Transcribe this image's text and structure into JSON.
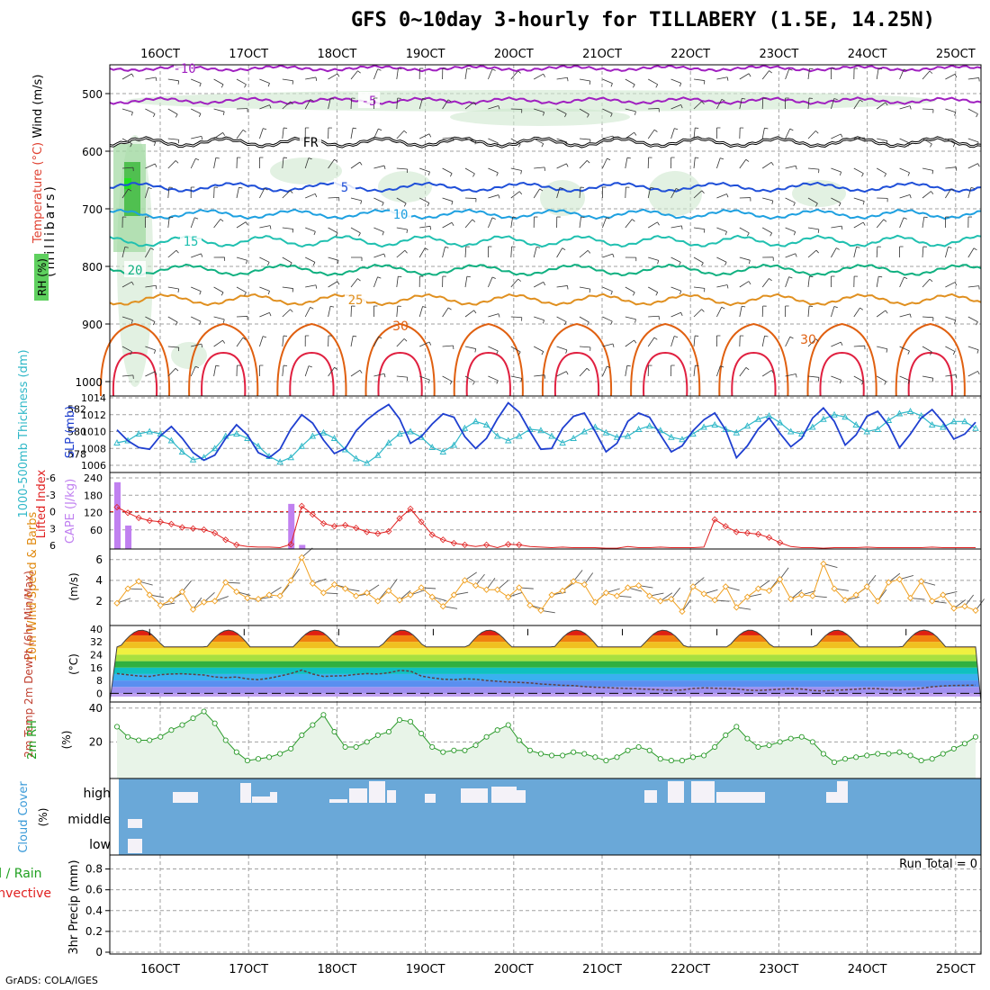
{
  "title": "GFS 0~10day 3-hourly for TILLABERY (1.5E, 14.25N)",
  "credit": "GrADS: COLA/IGES",
  "dates": [
    "16OCT",
    "17OCT",
    "18OCT",
    "19OCT",
    "20OCT",
    "21OCT",
    "22OCT",
    "23OCT",
    "24OCT",
    "25OCT"
  ],
  "panels": {
    "upper": {
      "ylabel": "(millibars)",
      "ylabel_parts": [
        "Wind (m/s)",
        "Temperature (°C)",
        "RH (%)"
      ],
      "levels": [
        "500",
        "600",
        "700",
        "800",
        "900",
        "1000"
      ],
      "contours": [
        "-10",
        "-5",
        "FR",
        "5",
        "10",
        "15",
        "20",
        "25",
        "30",
        "30"
      ]
    },
    "thickness": {
      "left_label": "1000-500mb Thickness (dm)",
      "right_label": "SLP (mb)",
      "left_ticks": [
        "582",
        "580",
        "578"
      ],
      "right_ticks": [
        "1014",
        "1012",
        "1010",
        "1008",
        "1006"
      ]
    },
    "cape": {
      "left_label": "Lifted Index",
      "right_label": "CAPE (J/kg)",
      "li_ticks": [
        "-6",
        "-3",
        "0",
        "3",
        "6"
      ],
      "cape_ticks": [
        "240",
        "180",
        "120",
        "60"
      ]
    },
    "wind10": {
      "label": "10m Wind Speed & Barbs",
      "unit": "(m/s)",
      "ticks": [
        "6",
        "4",
        "2"
      ]
    },
    "temp2m": {
      "label": "2m Temp 2m DewPt (6hr Min/Max)",
      "unit": "(°C)",
      "ticks": [
        "40",
        "32",
        "24",
        "16",
        "8",
        "0"
      ]
    },
    "rh2m": {
      "label": "2m RH",
      "unit": "(%)",
      "ticks": [
        "40",
        "20"
      ]
    },
    "cloud": {
      "label": "Cloud Cover",
      "unit": "(%)",
      "levels": [
        "high",
        "middle",
        "low"
      ]
    },
    "precip": {
      "label": "3hr Precip (mm)",
      "sub_labels": [
        "Total / Rain",
        "Convective"
      ],
      "ticks": [
        "0.8",
        "0.6",
        "0.4",
        "0.2",
        "0"
      ],
      "run_total": "Run Total = 0"
    }
  },
  "colors": {
    "contour_purple": "#a020c0",
    "contour_blue": "#1f4fd8",
    "contour_lightblue": "#1ea0e0",
    "contour_teal": "#20c0b0",
    "contour_green": "#10b080",
    "contour_orange": "#e09020",
    "contour_darkorange": "#e06010",
    "contour_red": "#e02040",
    "rh_fill": "#cfe8cf",
    "cloud_blue": "#6aa8d8",
    "cape_bar": "#c080f0"
  },
  "chart_data": [
    {
      "type": "line",
      "title": "1000-500mb Thickness (dm) / SLP (mb)",
      "x": "3-hourly steps from 16OCT 00Z (t=0..79)",
      "series": [
        {
          "name": "SLP (mb)",
          "axis": "right",
          "ylim": [
            1006,
            1014
          ],
          "values": [
            1010.2,
            1008.9,
            1008.1,
            1007.9,
            1009.5,
            1010.6,
            1009.2,
            1007.5,
            1006.6,
            1007.2,
            1009.2,
            1010.8,
            1009.6,
            1007.5,
            1006.9,
            1007.9,
            1010.3,
            1012.0,
            1011.0,
            1009.0,
            1007.4,
            1008.0,
            1010.1,
            1011.4,
            1012.4,
            1013.2,
            1011.5,
            1008.6,
            1009.4,
            1010.9,
            1012.1,
            1011.7,
            1009.4,
            1008.0,
            1009.2,
            1011.5,
            1013.4,
            1012.3,
            1010.0,
            1007.9,
            1008.0,
            1010.4,
            1011.8,
            1012.2,
            1010.0,
            1007.6,
            1008.6,
            1011.2,
            1012.2,
            1011.7,
            1009.6,
            1007.6,
            1008.3,
            1010.1,
            1011.4,
            1012.2,
            1010.2,
            1006.9,
            1008.3,
            1010.3,
            1011.6,
            1009.8,
            1008.2,
            1009.2,
            1011.6,
            1012.8,
            1011.2,
            1008.4,
            1009.6,
            1011.8,
            1012.4,
            1010.7,
            1008.1,
            1009.7,
            1011.6,
            1012.6,
            1011.1,
            1009.1,
            1009.7,
            1011.1
          ]
        },
        {
          "name": "1000-500mb Thickness (dm)",
          "axis": "left",
          "ylim": [
            577,
            583
          ],
          "values": [
            579.0,
            579.2,
            579.8,
            580.0,
            579.8,
            579.2,
            578.2,
            577.5,
            577.7,
            578.5,
            579.6,
            579.8,
            579.4,
            578.7,
            577.8,
            577.3,
            577.7,
            578.7,
            579.6,
            579.9,
            579.4,
            578.4,
            577.6,
            577.2,
            577.9,
            579.0,
            579.8,
            580.0,
            579.5,
            578.6,
            578.2,
            578.8,
            580.3,
            580.9,
            580.6,
            579.6,
            579.2,
            579.6,
            580.2,
            580.1,
            579.6,
            579.0,
            579.4,
            580.0,
            580.4,
            579.9,
            579.5,
            579.6,
            580.2,
            580.5,
            580.1,
            579.5,
            579.3,
            579.8,
            580.4,
            580.6,
            580.2,
            579.9,
            580.5,
            581.1,
            581.4,
            580.8,
            580.0,
            579.8,
            580.4,
            581.1,
            581.5,
            581.3,
            580.6,
            580.0,
            580.2,
            581.0,
            581.6,
            581.8,
            581.4,
            580.6,
            580.4,
            580.9,
            580.9,
            580.3
          ]
        }
      ]
    },
    {
      "type": "bar",
      "title": "Lifted Index / CAPE (J/kg)",
      "cape_bars": [
        {
          "t": 0,
          "value": 225
        },
        {
          "t": 1,
          "value": 75
        },
        {
          "t": 16,
          "value": 150
        },
        {
          "t": 17,
          "value": 8
        }
      ],
      "lifted_index": {
        "ylim": [
          6,
          -6
        ],
        "values": [
          -0.8,
          0.2,
          1.1,
          1.6,
          1.8,
          2.2,
          2.8,
          3.0,
          3.2,
          3.8,
          5.0,
          5.9,
          6.2,
          6.3,
          6.3,
          6.4,
          5.8,
          -1.0,
          0.5,
          2.1,
          2.6,
          2.4,
          2.9,
          3.6,
          3.9,
          3.5,
          1.2,
          -0.5,
          1.8,
          4.1,
          5.0,
          5.6,
          5.9,
          6.2,
          5.9,
          6.4,
          5.8,
          5.9,
          6.2,
          6.3,
          6.4,
          6.3,
          6.4,
          6.4,
          6.4,
          6.5,
          6.5,
          6.2,
          6.4,
          6.4,
          6.3,
          6.4,
          6.4,
          6.4,
          6.3,
          1.4,
          2.6,
          3.6,
          3.8,
          4.0,
          4.6,
          5.5,
          6.2,
          6.4,
          6.4,
          6.5,
          6.4,
          6.4,
          6.4,
          6.3,
          6.4,
          6.4,
          6.4,
          6.4,
          6.4,
          6.3,
          6.4,
          6.4,
          6.4,
          6.4
        ]
      }
    },
    {
      "type": "line",
      "title": "10m Wind Speed & Barbs (m/s)",
      "ylim": [
        0,
        6.5
      ],
      "values": [
        1.8,
        3.2,
        3.9,
        2.6,
        1.6,
        2.1,
        2.9,
        1.2,
        1.9,
        2.0,
        3.8,
        2.9,
        2.3,
        2.2,
        2.6,
        2.5,
        4.0,
        6.2,
        3.7,
        2.8,
        3.6,
        3.2,
        2.5,
        2.8,
        2.0,
        3.0,
        2.1,
        2.6,
        3.3,
        2.4,
        1.5,
        2.6,
        4.0,
        3.5,
        3.1,
        3.1,
        2.4,
        3.3,
        1.6,
        1.1,
        2.6,
        3.0,
        3.9,
        3.6,
        1.9,
        2.8,
        2.5,
        3.3,
        3.5,
        2.5,
        2.0,
        2.2,
        1.0,
        3.4,
        2.7,
        2.1,
        3.4,
        1.4,
        2.4,
        3.2,
        3.0,
        4.1,
        2.2,
        2.6,
        2.5,
        5.6,
        3.2,
        2.1,
        2.6,
        3.4,
        2.0,
        3.8,
        4.1,
        2.3,
        3.9,
        2.0,
        2.6,
        1.3,
        1.5,
        1.1
      ]
    },
    {
      "type": "area",
      "title": "2m Temp / 2m DewPt (°C)",
      "ylim": [
        -2,
        41
      ],
      "temp_cycle": {
        "min": 28.5,
        "max": 39.5,
        "period_days": 1
      },
      "dewpt": [
        12.3,
        11.5,
        10.8,
        10.5,
        11.6,
        12.0,
        12.2,
        11.8,
        11.4,
        10.2,
        9.8,
        10.2,
        9.0,
        8.5,
        9.4,
        10.8,
        12.3,
        14.5,
        12.0,
        10.5,
        10.8,
        11.0,
        11.8,
        12.3,
        12.0,
        12.8,
        14.2,
        13.8,
        10.8,
        9.6,
        8.8,
        8.5,
        9.0,
        8.8,
        8.0,
        7.5,
        7.0,
        6.8,
        6.5,
        5.8,
        5.4,
        5.0,
        4.8,
        4.2,
        3.8,
        3.6,
        3.3,
        3.0,
        2.8,
        2.5,
        2.2,
        1.9,
        2.1,
        3.0,
        3.4,
        3.2,
        3.0,
        2.7,
        2.1,
        1.8,
        2.2,
        2.6,
        2.9,
        2.7,
        1.8,
        1.5,
        1.9,
        2.2,
        2.6,
        3.0,
        2.9,
        2.4,
        2.1,
        2.6,
        3.2,
        4.1,
        4.6,
        4.9,
        5.0,
        5.1
      ]
    },
    {
      "type": "area",
      "title": "2m RH (%)",
      "ylim": [
        0,
        42
      ],
      "values": [
        29,
        23,
        21,
        21,
        23,
        27,
        30,
        34,
        38,
        31,
        21,
        14,
        9,
        10,
        11,
        13,
        16,
        24,
        30,
        36,
        26,
        17,
        17,
        20,
        24,
        26,
        33,
        32,
        25,
        17,
        14,
        15,
        15,
        18,
        23,
        27,
        30,
        21,
        15,
        13,
        12,
        12,
        14,
        13,
        11,
        9,
        11,
        15,
        17,
        15,
        10,
        9,
        9,
        11,
        12,
        17,
        24,
        29,
        22,
        17,
        18,
        20,
        22,
        23,
        20,
        13,
        8,
        10,
        11,
        12,
        13,
        13,
        14,
        12,
        9,
        10,
        13,
        16,
        19,
        23
      ]
    }
  ]
}
